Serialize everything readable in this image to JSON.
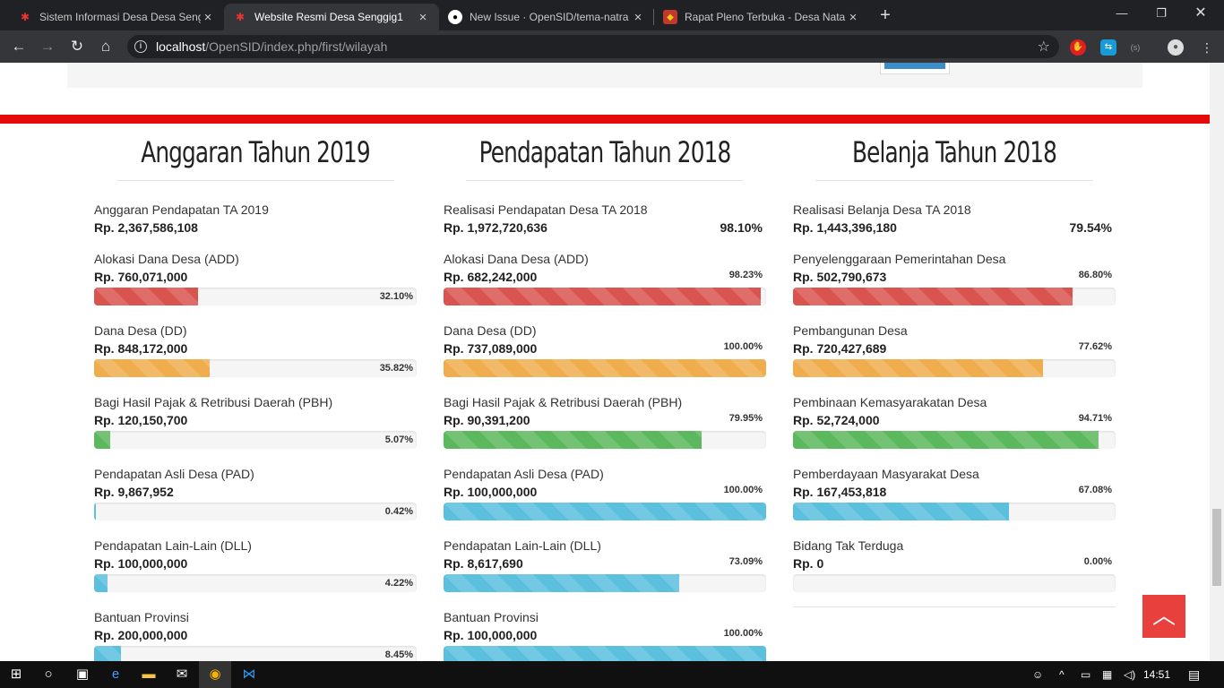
{
  "browser": {
    "tabs": [
      {
        "title": "Sistem Informasi Desa Desa Seng",
        "favicon": "opensid-logo-icon",
        "active": false
      },
      {
        "title": "Website Resmi Desa Senggig1",
        "favicon": "opensid-logo-icon",
        "active": true
      },
      {
        "title": "New Issue · OpenSID/tema-natra",
        "favicon": "github-icon",
        "active": false
      },
      {
        "title": "Rapat Pleno Terbuka - Desa Nata",
        "favicon": "desa-seal-icon",
        "active": false
      }
    ],
    "url_host": "localhost",
    "url_path": "/OpenSID/index.php/first/wilayah"
  },
  "columns": [
    {
      "title": "Anggaran Tahun 2019",
      "summary": {
        "label": "Anggaran Pendapatan TA 2019",
        "amount": "Rp. 2,367,586,108",
        "percent": ""
      },
      "items": [
        {
          "label": "Alokasi Dana Desa (ADD)",
          "amount": "Rp. 760,071,000",
          "percent": "32.10%",
          "fill": 32.1,
          "color": "#d9534f"
        },
        {
          "label": "Dana Desa (DD)",
          "amount": "Rp. 848,172,000",
          "percent": "35.82%",
          "fill": 35.82,
          "color": "#f0ad4e"
        },
        {
          "label": "Bagi Hasil Pajak & Retribusi Daerah (PBH)",
          "amount": "Rp. 120,150,700",
          "percent": "5.07%",
          "fill": 5.07,
          "color": "#5cb85c"
        },
        {
          "label": "Pendapatan Asli Desa (PAD)",
          "amount": "Rp. 9,867,952",
          "percent": "0.42%",
          "fill": 0.42,
          "color": "#5bc0de"
        },
        {
          "label": "Pendapatan Lain-Lain (DLL)",
          "amount": "Rp. 100,000,000",
          "percent": "4.22%",
          "fill": 4.22,
          "color": "#5bc0de"
        },
        {
          "label": "Bantuan Provinsi",
          "amount": "Rp. 200,000,000",
          "percent": "8.45%",
          "fill": 8.45,
          "color": "#5bc0de"
        }
      ]
    },
    {
      "title": "Pendapatan Tahun 2018",
      "summary": {
        "label": "Realisasi Pendapatan Desa TA 2018",
        "amount": "Rp. 1,972,720,636",
        "percent": "98.10%"
      },
      "items": [
        {
          "label": "Alokasi Dana Desa (ADD)",
          "amount": "Rp. 682,242,000",
          "percent": "98.23%",
          "fill": 98.23,
          "color": "#d9534f"
        },
        {
          "label": "Dana Desa (DD)",
          "amount": "Rp. 737,089,000",
          "percent": "100.00%",
          "fill": 100,
          "color": "#f0ad4e"
        },
        {
          "label": "Bagi Hasil Pajak & Retribusi Daerah (PBH)",
          "amount": "Rp. 90,391,200",
          "percent": "79.95%",
          "fill": 79.95,
          "color": "#5cb85c"
        },
        {
          "label": "Pendapatan Asli Desa (PAD)",
          "amount": "Rp. 100,000,000",
          "percent": "100.00%",
          "fill": 100,
          "color": "#5bc0de"
        },
        {
          "label": "Pendapatan Lain-Lain (DLL)",
          "amount": "Rp. 8,617,690",
          "percent": "73.09%",
          "fill": 73.09,
          "color": "#5bc0de"
        },
        {
          "label": "Bantuan Provinsi",
          "amount": "Rp. 100,000,000",
          "percent": "100.00%",
          "fill": 100,
          "color": "#5bc0de"
        }
      ]
    },
    {
      "title": "Belanja Tahun 2018",
      "summary": {
        "label": "Realisasi Belanja Desa TA 2018",
        "amount": "Rp. 1,443,396,180",
        "percent": "79.54%"
      },
      "items": [
        {
          "label": "Penyelenggaraan Pemerintahan Desa",
          "amount": "Rp. 502,790,673",
          "percent": "86.80%",
          "fill": 86.8,
          "color": "#d9534f"
        },
        {
          "label": "Pembangunan Desa",
          "amount": "Rp. 720,427,689",
          "percent": "77.62%",
          "fill": 77.62,
          "color": "#f0ad4e"
        },
        {
          "label": "Pembinaan Kemasyarakatan Desa",
          "amount": "Rp. 52,724,000",
          "percent": "94.71%",
          "fill": 94.71,
          "color": "#5cb85c"
        },
        {
          "label": "Pemberdayaan Masyarakat Desa",
          "amount": "Rp. 167,453,818",
          "percent": "67.08%",
          "fill": 67.08,
          "color": "#5bc0de"
        },
        {
          "label": "Bidang Tak Terduga",
          "amount": "Rp. 0",
          "percent": "0.00%",
          "fill": 0,
          "color": "#5bc0de"
        }
      ]
    }
  ],
  "back_to_top_icon": "chevron-up-icon",
  "taskbar": {
    "clock": "14:51"
  }
}
